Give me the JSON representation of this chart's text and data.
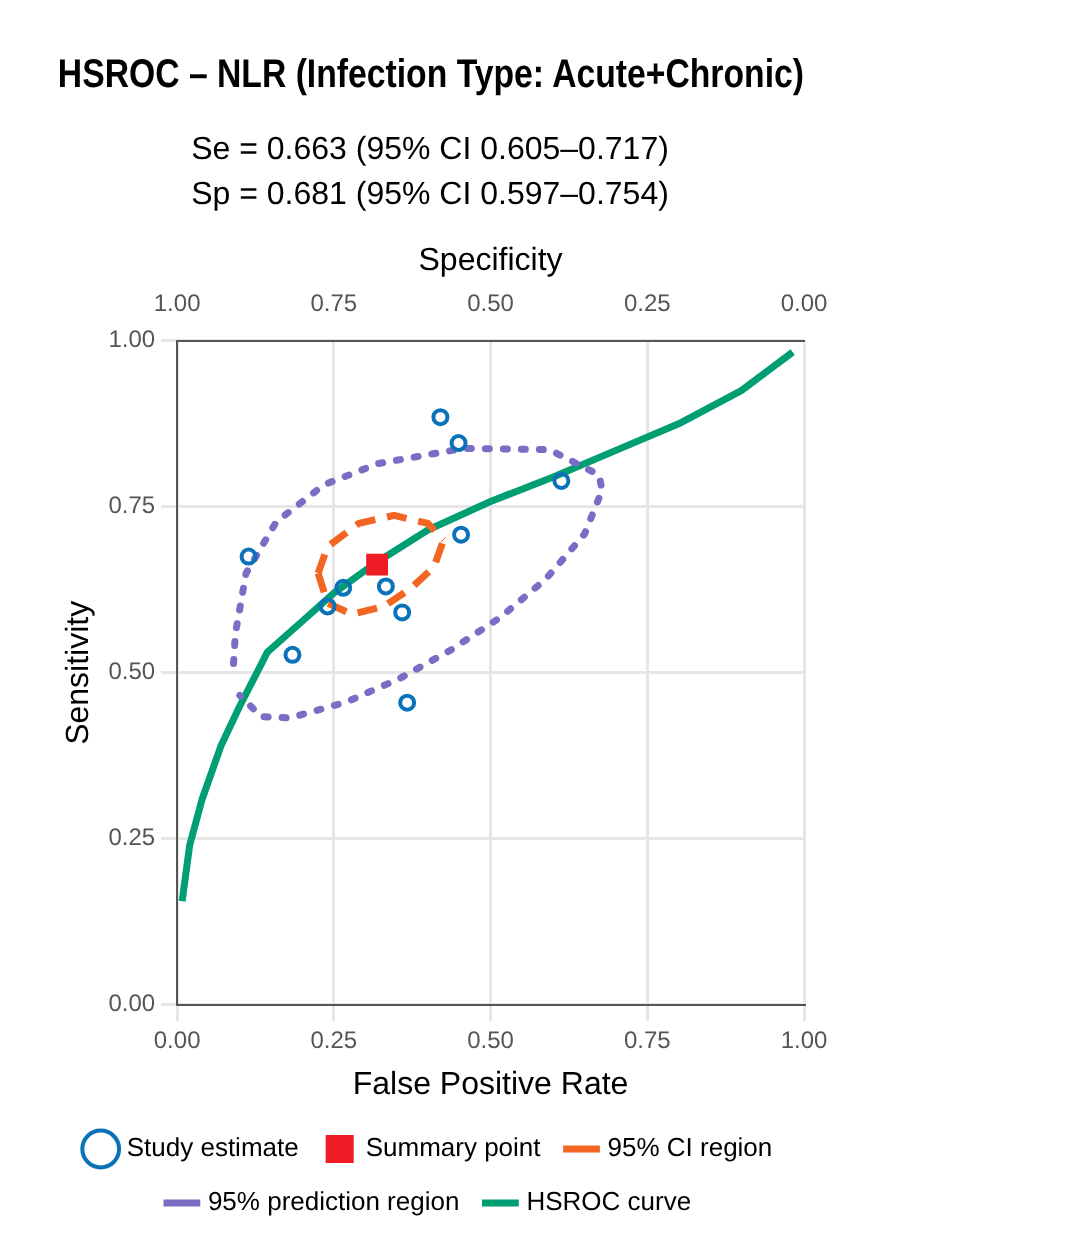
{
  "chart_data": {
    "type": "scatter",
    "title": "HSROC – NLR (Infection Type: Acute+Chronic)",
    "annotations": [
      "Se = 0.663 (95% CI 0.605–0.717)",
      "Sp = 0.681 (95% CI 0.597–0.754)"
    ],
    "xlabel": "False Positive Rate",
    "ylabel": "Sensitivity",
    "x2label": "Specificity",
    "xlim": [
      0,
      1
    ],
    "ylim": [
      0,
      1
    ],
    "x2lim": [
      1,
      0
    ],
    "xticks": [
      {
        "value": 0,
        "label": "0.00"
      },
      {
        "value": 0.25,
        "label": "0.25"
      },
      {
        "value": 0.5,
        "label": "0.50"
      },
      {
        "value": 0.75,
        "label": "0.75"
      },
      {
        "value": 1,
        "label": "1.00"
      }
    ],
    "yticks": [
      {
        "value": 0,
        "label": "0.00"
      },
      {
        "value": 0.25,
        "label": "0.25"
      },
      {
        "value": 0.5,
        "label": "0.50"
      },
      {
        "value": 0.75,
        "label": "0.75"
      },
      {
        "value": 1,
        "label": "1.00"
      }
    ],
    "x2ticks": [
      {
        "value": 1,
        "label": "1.00"
      },
      {
        "value": 0.75,
        "label": "0.75"
      },
      {
        "value": 0.5,
        "label": "0.50"
      },
      {
        "value": 0.25,
        "label": "0.25"
      },
      {
        "value": 0,
        "label": "0.00"
      }
    ],
    "grid": true,
    "legend": "bottom",
    "series": [
      {
        "name": "Study estimate",
        "marker": "circle",
        "color": "#0a72b8",
        "x": [
          0.42,
          0.449,
          0.613,
          0.453,
          0.114,
          0.333,
          0.265,
          0.24,
          0.359,
          0.184,
          0.367
        ],
        "values": [
          0.885,
          0.846,
          0.789,
          0.708,
          0.675,
          0.63,
          0.628,
          0.6,
          0.591,
          0.527,
          0.455
        ]
      },
      {
        "name": "Summary point",
        "marker": "square",
        "color": "#ee1c25",
        "x": [
          0.319
        ],
        "values": [
          0.663
        ]
      },
      {
        "name": "95% CI region",
        "type": "line",
        "marker": "none",
        "line_style": "dashed",
        "color": "#f26522",
        "x": [
          0.225,
          0.24,
          0.29,
          0.346,
          0.4,
          0.425
        ],
        "values": [
          0.65,
          0.69,
          0.725,
          0.737,
          0.725,
          0.7
        ]
      },
      {
        "type": "line",
        "marker": "none",
        "line_style": "dashed",
        "color": "#f26522",
        "x": [
          0.225,
          0.24,
          0.279,
          0.33,
          0.374,
          0.41,
          0.425
        ],
        "values": [
          0.65,
          0.605,
          0.588,
          0.6,
          0.628,
          0.66,
          0.7
        ]
      },
      {
        "name": "95% prediction region",
        "type": "line",
        "marker": "none",
        "line_style": "dotted",
        "color": "#7b6cc4",
        "x": [
          0.09,
          0.093,
          0.11,
          0.158,
          0.234,
          0.32,
          0.457,
          0.594,
          0.673,
          0.678,
          0.65,
          0.588,
          0.515,
          0.436,
          0.354,
          0.27,
          0.18,
          0.134,
          0.1
        ],
        "values": [
          0.514,
          0.559,
          0.65,
          0.727,
          0.783,
          0.815,
          0.838,
          0.836,
          0.798,
          0.775,
          0.709,
          0.641,
          0.583,
          0.534,
          0.491,
          0.456,
          0.432,
          0.434,
          0.466
        ]
      },
      {
        "name": "HSROC curve",
        "type": "line",
        "marker": "none",
        "line_style": "solid",
        "color": "#009e73",
        "x": [
          0.008,
          0.02,
          0.04,
          0.07,
          0.1,
          0.144,
          0.2,
          0.25,
          0.316,
          0.4,
          0.5,
          0.6,
          0.7,
          0.8,
          0.9,
          0.982
        ],
        "values": [
          0.156,
          0.24,
          0.31,
          0.39,
          0.45,
          0.531,
          0.578,
          0.62,
          0.665,
          0.715,
          0.758,
          0.795,
          0.835,
          0.875,
          0.925,
          0.983
        ]
      }
    ]
  }
}
